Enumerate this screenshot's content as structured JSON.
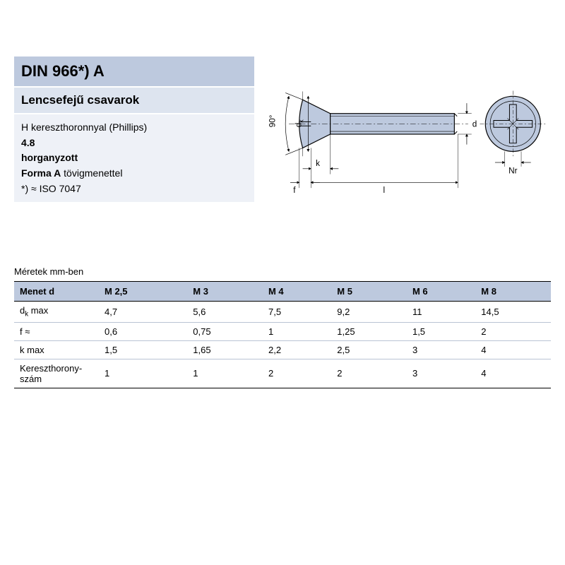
{
  "header": {
    "title": "DIN 966*) A",
    "subtitle": "Lencsefejű csavarok",
    "desc_line1": "H kereszthoronnyal (Phillips)",
    "desc_line2": "4.8",
    "desc_line3": "horganyzott",
    "desc_line4a": "Forma A",
    "desc_line4b": " tövigmenettel",
    "desc_line5": "*) ≈ ISO 7047"
  },
  "diagram": {
    "stroke": "#000000",
    "fill": "#bdc9de",
    "labels": {
      "angle": "90°",
      "dk": "d",
      "dk_sub": "k",
      "k": "k",
      "f": "f",
      "l": "l",
      "d": "d",
      "nr": "Nr"
    }
  },
  "table": {
    "caption": "Méretek mm-ben",
    "columns": [
      "Menet d",
      "M 2,5",
      "M 3",
      "M 4",
      "M 5",
      "M 6",
      "M 8"
    ],
    "rows": [
      {
        "label_html": "d<sub>k</sub> max",
        "cells": [
          "4,7",
          "5,6",
          "7,5",
          "9,2",
          "11",
          "14,5"
        ]
      },
      {
        "label_html": "f ≈",
        "cells": [
          "0,6",
          "0,75",
          "1",
          "1,25",
          "1,5",
          "2"
        ]
      },
      {
        "label_html": "k max",
        "cells": [
          "1,5",
          "1,65",
          "2,2",
          "2,5",
          "3",
          "4"
        ]
      },
      {
        "label_html": "Kereszthorony-<br>szám",
        "cells": [
          "1",
          "1",
          "2",
          "2",
          "3",
          "4"
        ]
      }
    ],
    "colors": {
      "header_bg": "#bdc9de",
      "row_border": "#b9c3d4",
      "outer_border": "#000000"
    }
  }
}
